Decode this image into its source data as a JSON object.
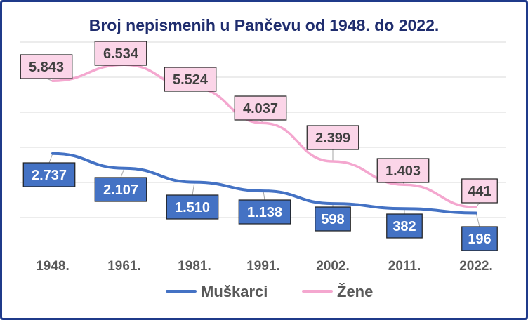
{
  "chart_data": {
    "type": "line",
    "title": "Broj nepismenih u Pančevu od 1948. do 2022.",
    "categories": [
      "1948.",
      "1961.",
      "1981.",
      "1991.",
      "2002.",
      "2011.",
      "2022."
    ],
    "series": [
      {
        "name": "Muškarci",
        "color": "#4472c4",
        "values": [
          2737,
          2107,
          1510,
          1138,
          598,
          382,
          196
        ],
        "labels": [
          "2.737",
          "2.107",
          "1.510",
          "1.138",
          "598",
          "382",
          "196"
        ]
      },
      {
        "name": "Žene",
        "color": "#f4a7cf",
        "values": [
          5843,
          6534,
          5524,
          4037,
          2399,
          1403,
          441
        ],
        "labels": [
          "5.843",
          "6.534",
          "5.524",
          "4.037",
          "2.399",
          "1.403",
          "441"
        ]
      }
    ],
    "grid": true,
    "legend_position": "bottom"
  }
}
